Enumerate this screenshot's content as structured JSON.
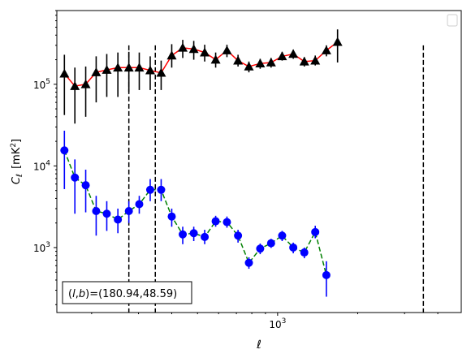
{
  "chart_data": {
    "type": "scatter",
    "title": "",
    "xlabel": "ℓ",
    "ylabel": "C",
    "ylabel_sub": "ℓ",
    "ylabel_units": "[mK",
    "ylabel_units_sup": "2",
    "ylabel_units_end": "]",
    "x_scale": "log",
    "y_scale": "log",
    "xlim": [
      148,
      4900
    ],
    "ylim": [
      160,
      800000
    ],
    "x_tick_labels": [
      {
        "value": 1000,
        "base": "10",
        "exp": "3"
      }
    ],
    "y_tick_labels": [
      {
        "value": 1000,
        "base": "10",
        "exp": "3"
      },
      {
        "value": 10000,
        "base": "10",
        "exp": "4"
      },
      {
        "value": 100000,
        "base": "10",
        "exp": "5"
      }
    ],
    "legend_position": "top-right",
    "annotation": {
      "text": "(l,b)=(180.94,48.59)",
      "position": "bottom-left"
    },
    "vertical_lines": [
      {
        "x": 276,
        "y_top": 300000
      },
      {
        "x": 347,
        "y_top": 300000
      },
      {
        "x": 3530,
        "y_top": 300000
      }
    ],
    "series": [
      {
        "marker": "triangle",
        "marker_color": "#000000",
        "line_color": "#ff0000",
        "line_style": "solid",
        "points": [
          {
            "x": 158,
            "y": 135000,
            "lo": 42000,
            "hi": 230000
          },
          {
            "x": 173,
            "y": 95000,
            "lo": 33000,
            "hi": 160000
          },
          {
            "x": 190,
            "y": 100000,
            "lo": 40000,
            "hi": 165000
          },
          {
            "x": 208,
            "y": 140000,
            "lo": 60000,
            "hi": 220000
          },
          {
            "x": 228,
            "y": 150000,
            "lo": 70000,
            "hi": 235000
          },
          {
            "x": 251,
            "y": 160000,
            "lo": 70000,
            "hi": 245000
          },
          {
            "x": 276,
            "y": 160000,
            "lo": 80000,
            "hi": 250000
          },
          {
            "x": 302,
            "y": 160000,
            "lo": 85000,
            "hi": 245000
          },
          {
            "x": 332,
            "y": 148000,
            "lo": 85000,
            "hi": 220000
          },
          {
            "x": 365,
            "y": 138000,
            "lo": 85000,
            "hi": 195000
          },
          {
            "x": 400,
            "y": 225000,
            "lo": 160000,
            "hi": 310000
          },
          {
            "x": 440,
            "y": 280000,
            "lo": 210000,
            "hi": 350000
          },
          {
            "x": 484,
            "y": 270000,
            "lo": 200000,
            "hi": 340000
          },
          {
            "x": 532,
            "y": 245000,
            "lo": 190000,
            "hi": 305000
          },
          {
            "x": 585,
            "y": 200000,
            "lo": 160000,
            "hi": 245000
          },
          {
            "x": 645,
            "y": 260000,
            "lo": 215000,
            "hi": 305000
          },
          {
            "x": 710,
            "y": 195000,
            "lo": 165000,
            "hi": 230000
          },
          {
            "x": 780,
            "y": 165000,
            "lo": 140000,
            "hi": 190000
          },
          {
            "x": 860,
            "y": 180000,
            "lo": 155000,
            "hi": 205000
          },
          {
            "x": 945,
            "y": 185000,
            "lo": 160000,
            "hi": 210000
          },
          {
            "x": 1040,
            "y": 220000,
            "lo": 195000,
            "hi": 250000
          },
          {
            "x": 1145,
            "y": 235000,
            "lo": 205000,
            "hi": 265000
          },
          {
            "x": 1260,
            "y": 190000,
            "lo": 165000,
            "hi": 215000
          },
          {
            "x": 1385,
            "y": 195000,
            "lo": 170000,
            "hi": 225000
          },
          {
            "x": 1525,
            "y": 260000,
            "lo": 220000,
            "hi": 300000
          },
          {
            "x": 1680,
            "y": 330000,
            "lo": 185000,
            "hi": 470000
          }
        ]
      },
      {
        "marker": "circle",
        "marker_color": "#0000ff",
        "line_color": "#008000",
        "line_style": "dashed",
        "points": [
          {
            "x": 158,
            "y": 15500,
            "lo": 5200,
            "hi": 27000
          },
          {
            "x": 173,
            "y": 7200,
            "lo": 2600,
            "hi": 12000
          },
          {
            "x": 190,
            "y": 5800,
            "lo": 2700,
            "hi": 9000
          },
          {
            "x": 208,
            "y": 2800,
            "lo": 1400,
            "hi": 4300
          },
          {
            "x": 228,
            "y": 2600,
            "lo": 1600,
            "hi": 3700
          },
          {
            "x": 251,
            "y": 2200,
            "lo": 1500,
            "hi": 3000
          },
          {
            "x": 276,
            "y": 2800,
            "lo": 2000,
            "hi": 3700
          },
          {
            "x": 302,
            "y": 3400,
            "lo": 2600,
            "hi": 4300
          },
          {
            "x": 332,
            "y": 5100,
            "lo": 3700,
            "hi": 6900
          },
          {
            "x": 365,
            "y": 5100,
            "lo": 3700,
            "hi": 6900
          },
          {
            "x": 400,
            "y": 2400,
            "lo": 1800,
            "hi": 3000
          },
          {
            "x": 440,
            "y": 1450,
            "lo": 1100,
            "hi": 1800
          },
          {
            "x": 484,
            "y": 1500,
            "lo": 1200,
            "hi": 1800
          },
          {
            "x": 532,
            "y": 1350,
            "lo": 1100,
            "hi": 1650
          },
          {
            "x": 585,
            "y": 2100,
            "lo": 1800,
            "hi": 2450
          },
          {
            "x": 645,
            "y": 2050,
            "lo": 1750,
            "hi": 2400
          },
          {
            "x": 710,
            "y": 1400,
            "lo": 1150,
            "hi": 1650
          },
          {
            "x": 780,
            "y": 650,
            "lo": 550,
            "hi": 760
          },
          {
            "x": 860,
            "y": 970,
            "lo": 830,
            "hi": 1120
          },
          {
            "x": 945,
            "y": 1130,
            "lo": 990,
            "hi": 1280
          },
          {
            "x": 1040,
            "y": 1400,
            "lo": 1200,
            "hi": 1600
          },
          {
            "x": 1145,
            "y": 1000,
            "lo": 850,
            "hi": 1150
          },
          {
            "x": 1260,
            "y": 870,
            "lo": 740,
            "hi": 1000
          },
          {
            "x": 1385,
            "y": 1550,
            "lo": 1300,
            "hi": 1850
          },
          {
            "x": 1525,
            "y": 460,
            "lo": 250,
            "hi": 680
          }
        ]
      }
    ]
  }
}
